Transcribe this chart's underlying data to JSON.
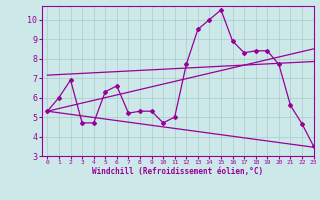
{
  "x_values": [
    0,
    1,
    2,
    3,
    4,
    5,
    6,
    7,
    8,
    9,
    10,
    11,
    12,
    13,
    14,
    15,
    16,
    17,
    18,
    19,
    20,
    21,
    22,
    23
  ],
  "line1": [
    5.3,
    6.0,
    6.9,
    4.7,
    4.7,
    6.3,
    6.6,
    5.2,
    5.3,
    5.3,
    4.7,
    5.0,
    7.7,
    9.5,
    10.0,
    10.5,
    8.9,
    8.3,
    8.4,
    8.4,
    7.7,
    5.6,
    4.65,
    3.5
  ],
  "line_rising": [
    [
      0,
      5.3
    ],
    [
      23,
      8.5
    ]
  ],
  "line_flat": [
    [
      0,
      7.15
    ],
    [
      23,
      7.85
    ]
  ],
  "line_declining": [
    [
      0,
      5.3
    ],
    [
      23,
      3.45
    ]
  ],
  "color": "#990099",
  "bg_color": "#cce8e8",
  "grid_color": "#aacccc",
  "xlabel": "Windchill (Refroidissement éolien,°C)",
  "ylim": [
    3,
    10.7
  ],
  "xlim": [
    -0.5,
    23
  ],
  "yticks": [
    3,
    4,
    5,
    6,
    7,
    8,
    9,
    10
  ],
  "xticks": [
    0,
    1,
    2,
    3,
    4,
    5,
    6,
    7,
    8,
    9,
    10,
    11,
    12,
    13,
    14,
    15,
    16,
    17,
    18,
    19,
    20,
    21,
    22,
    23
  ]
}
